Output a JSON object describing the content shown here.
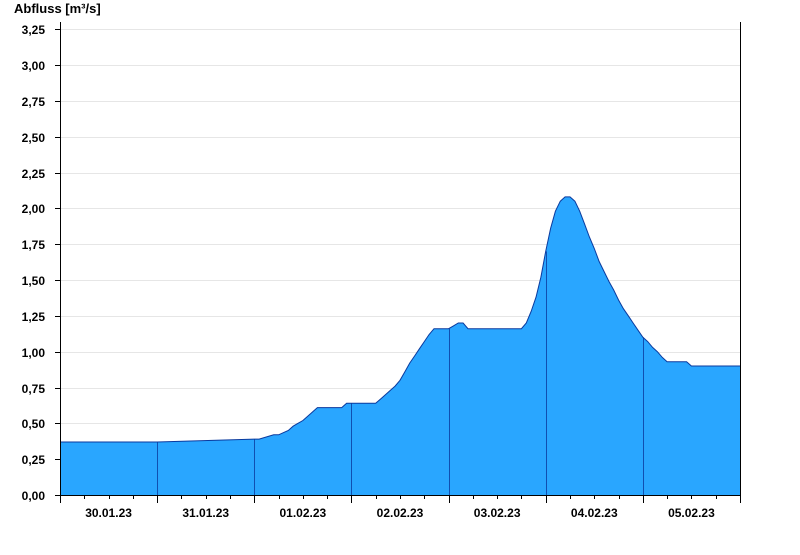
{
  "chart_data": {
    "type": "area",
    "ylabel": "Abfluss [m³/s]",
    "ylim": [
      0,
      3.3
    ],
    "yticks": [
      0,
      0.25,
      0.5,
      0.75,
      1.0,
      1.25,
      1.5,
      1.75,
      2.0,
      2.25,
      2.5,
      2.75,
      3.0,
      3.25
    ],
    "ytick_labels": [
      "0,00",
      "0,25",
      "0,50",
      "0,75",
      "1,00",
      "1,25",
      "1,50",
      "1,75",
      "2,00",
      "2,25",
      "2,50",
      "2,75",
      "3,00",
      "3,25"
    ],
    "xlim_days": [
      0,
      7
    ],
    "x_tick_labels": [
      "30.01.23",
      "31.01.23",
      "01.02.23",
      "02.02.23",
      "03.02.23",
      "04.02.23",
      "05.02.23"
    ],
    "grid": true,
    "fill_color": "#29a6ff",
    "line_color": "#0a3a9e",
    "series": [
      {
        "x": [
          0.0,
          1.0,
          2.0,
          2.05,
          2.2,
          2.25,
          2.35,
          2.4,
          2.45,
          2.5,
          2.55,
          2.6,
          2.65,
          2.7,
          2.9,
          2.95,
          3.0,
          3.25,
          3.3,
          3.35,
          3.4,
          3.45,
          3.5,
          3.55,
          3.6,
          3.65,
          3.7,
          3.75,
          3.8,
          3.85,
          3.9,
          3.95,
          4.0,
          4.05,
          4.1,
          4.15,
          4.2,
          4.25,
          4.3,
          4.35,
          4.4,
          4.45,
          4.5,
          4.75,
          4.8,
          4.85,
          4.9,
          4.95,
          5.0,
          5.05,
          5.1,
          5.15,
          5.2,
          5.25,
          5.3,
          5.35,
          5.4,
          5.45,
          5.5,
          5.55,
          5.6,
          5.65,
          5.7,
          5.75,
          5.8,
          5.85,
          5.9,
          5.95,
          6.0,
          6.05,
          6.1,
          6.15,
          6.2,
          6.25,
          6.3,
          6.35,
          6.4,
          6.45,
          6.5,
          6.75,
          6.8,
          7.0
        ],
        "y": [
          0.37,
          0.37,
          0.39,
          0.39,
          0.42,
          0.42,
          0.45,
          0.48,
          0.5,
          0.52,
          0.55,
          0.58,
          0.61,
          0.61,
          0.61,
          0.64,
          0.64,
          0.64,
          0.67,
          0.7,
          0.73,
          0.76,
          0.8,
          0.86,
          0.92,
          0.97,
          1.02,
          1.07,
          1.12,
          1.16,
          1.16,
          1.16,
          1.16,
          1.18,
          1.2,
          1.2,
          1.16,
          1.16,
          1.16,
          1.16,
          1.16,
          1.16,
          1.16,
          1.16,
          1.2,
          1.28,
          1.38,
          1.52,
          1.7,
          1.86,
          1.98,
          2.05,
          2.08,
          2.08,
          2.05,
          1.98,
          1.89,
          1.8,
          1.72,
          1.63,
          1.56,
          1.49,
          1.43,
          1.36,
          1.3,
          1.25,
          1.2,
          1.15,
          1.1,
          1.07,
          1.03,
          1.0,
          0.96,
          0.93,
          0.93,
          0.93,
          0.93,
          0.93,
          0.9,
          0.9,
          0.9,
          0.9
        ]
      }
    ]
  }
}
